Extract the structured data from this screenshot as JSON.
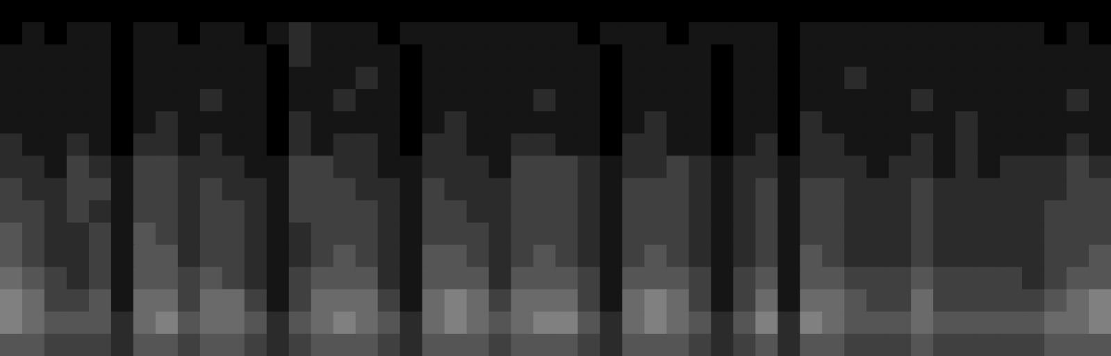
{
  "chart_data": {
    "type": "heatmap",
    "tick_labels": false,
    "xlim": [
      0,
      50
    ],
    "ylim": [
      0,
      16
    ],
    "color_range": [
      0,
      12
    ],
    "cells": [
      [
        0,
        0,
        0,
        0,
        0,
        0,
        0,
        0,
        0,
        0,
        0,
        0,
        0,
        0,
        0,
        0,
        0,
        0,
        0,
        0,
        0,
        0,
        0,
        0,
        0,
        0,
        0,
        0,
        0,
        0,
        0,
        0,
        0,
        0,
        0,
        0,
        0,
        0,
        0,
        0,
        0,
        0,
        0,
        0,
        0,
        0,
        0,
        0,
        0,
        0
      ],
      [
        0,
        1,
        0,
        1,
        1,
        0,
        1,
        1,
        0,
        1,
        1,
        0,
        1,
        2,
        1,
        1,
        1,
        0,
        1,
        1,
        1,
        1,
        1,
        1,
        1,
        1,
        0,
        1,
        1,
        1,
        0,
        1,
        1,
        1,
        1,
        0,
        1,
        1,
        1,
        1,
        1,
        1,
        1,
        1,
        1,
        1,
        1,
        0,
        1,
        0
      ],
      [
        1,
        1,
        1,
        1,
        1,
        0,
        1,
        1,
        1,
        1,
        1,
        1,
        0,
        2,
        1,
        1,
        1,
        1,
        0,
        1,
        1,
        1,
        1,
        1,
        1,
        1,
        1,
        0,
        1,
        1,
        1,
        1,
        0,
        1,
        1,
        0,
        1,
        1,
        1,
        1,
        1,
        1,
        1,
        1,
        1,
        1,
        1,
        1,
        1,
        1
      ],
      [
        1,
        1,
        1,
        1,
        1,
        0,
        1,
        1,
        1,
        1,
        1,
        1,
        0,
        1,
        1,
        1,
        2,
        1,
        0,
        1,
        1,
        1,
        1,
        1,
        1,
        1,
        1,
        0,
        1,
        1,
        1,
        1,
        0,
        1,
        1,
        0,
        1,
        1,
        2,
        1,
        1,
        1,
        1,
        1,
        1,
        1,
        1,
        1,
        1,
        1
      ],
      [
        1,
        1,
        1,
        1,
        1,
        0,
        1,
        1,
        1,
        2,
        1,
        1,
        0,
        1,
        1,
        2,
        1,
        1,
        0,
        1,
        1,
        1,
        1,
        1,
        2,
        1,
        1,
        0,
        1,
        1,
        1,
        1,
        0,
        1,
        1,
        0,
        1,
        1,
        1,
        1,
        1,
        2,
        1,
        1,
        1,
        1,
        1,
        1,
        2,
        1
      ],
      [
        1,
        1,
        1,
        1,
        1,
        0,
        1,
        2,
        1,
        1,
        1,
        1,
        0,
        2,
        1,
        1,
        1,
        1,
        0,
        1,
        2,
        1,
        1,
        1,
        1,
        1,
        1,
        0,
        1,
        2,
        1,
        1,
        0,
        1,
        1,
        0,
        2,
        1,
        1,
        1,
        1,
        1,
        1,
        2,
        1,
        1,
        1,
        1,
        1,
        1
      ],
      [
        2,
        1,
        1,
        2,
        1,
        0,
        2,
        2,
        1,
        2,
        1,
        1,
        0,
        2,
        1,
        2,
        2,
        1,
        0,
        2,
        2,
        1,
        1,
        2,
        2,
        1,
        1,
        0,
        2,
        2,
        1,
        1,
        0,
        1,
        2,
        0,
        2,
        2,
        1,
        1,
        1,
        2,
        1,
        2,
        1,
        1,
        1,
        1,
        2,
        1
      ],
      [
        2,
        2,
        1,
        3,
        2,
        1,
        3,
        3,
        2,
        2,
        2,
        1,
        1,
        3,
        3,
        2,
        2,
        1,
        1,
        2,
        2,
        2,
        1,
        3,
        3,
        3,
        2,
        1,
        2,
        2,
        3,
        2,
        1,
        2,
        2,
        1,
        2,
        2,
        2,
        1,
        2,
        2,
        1,
        2,
        1,
        2,
        2,
        2,
        3,
        2
      ],
      [
        3,
        2,
        2,
        3,
        3,
        1,
        3,
        3,
        2,
        3,
        2,
        2,
        1,
        3,
        3,
        3,
        2,
        2,
        1,
        3,
        2,
        2,
        2,
        3,
        3,
        3,
        2,
        1,
        3,
        3,
        3,
        2,
        1,
        2,
        3,
        1,
        3,
        3,
        2,
        2,
        2,
        3,
        2,
        2,
        2,
        2,
        2,
        2,
        3,
        3
      ],
      [
        3,
        3,
        2,
        3,
        2,
        1,
        3,
        3,
        2,
        3,
        3,
        2,
        1,
        3,
        3,
        3,
        3,
        2,
        1,
        3,
        3,
        2,
        2,
        3,
        3,
        3,
        2,
        1,
        3,
        3,
        3,
        2,
        1,
        2,
        3,
        1,
        3,
        3,
        2,
        2,
        2,
        3,
        2,
        2,
        2,
        2,
        2,
        3,
        3,
        3
      ],
      [
        4,
        3,
        2,
        2,
        3,
        1,
        4,
        3,
        2,
        3,
        3,
        2,
        1,
        2,
        3,
        3,
        3,
        2,
        1,
        3,
        3,
        3,
        2,
        3,
        3,
        3,
        2,
        1,
        3,
        3,
        3,
        2,
        1,
        2,
        3,
        1,
        3,
        3,
        2,
        2,
        2,
        3,
        2,
        2,
        2,
        2,
        2,
        3,
        3,
        3
      ],
      [
        4,
        3,
        2,
        2,
        3,
        1,
        4,
        4,
        2,
        3,
        3,
        2,
        1,
        2,
        3,
        4,
        3,
        2,
        1,
        4,
        4,
        3,
        2,
        3,
        4,
        3,
        2,
        1,
        3,
        4,
        3,
        2,
        1,
        2,
        3,
        1,
        4,
        3,
        2,
        2,
        2,
        3,
        2,
        2,
        2,
        2,
        2,
        3,
        3,
        4
      ],
      [
        5,
        4,
        3,
        2,
        3,
        1,
        4,
        4,
        3,
        4,
        3,
        2,
        1,
        3,
        4,
        4,
        4,
        2,
        1,
        4,
        4,
        4,
        2,
        4,
        4,
        4,
        3,
        1,
        4,
        4,
        4,
        3,
        1,
        3,
        4,
        1,
        4,
        4,
        3,
        3,
        3,
        4,
        3,
        3,
        3,
        3,
        2,
        3,
        4,
        4
      ],
      [
        6,
        5,
        3,
        3,
        4,
        1,
        5,
        5,
        3,
        5,
        5,
        3,
        1,
        3,
        5,
        5,
        5,
        3,
        1,
        5,
        6,
        5,
        3,
        5,
        5,
        5,
        3,
        1,
        5,
        6,
        5,
        3,
        1,
        3,
        5,
        1,
        5,
        5,
        4,
        3,
        3,
        5,
        3,
        3,
        3,
        3,
        3,
        4,
        5,
        6
      ],
      [
        6,
        5,
        4,
        4,
        4,
        2,
        5,
        6,
        4,
        5,
        5,
        4,
        2,
        4,
        5,
        6,
        5,
        4,
        2,
        5,
        6,
        5,
        4,
        5,
        6,
        6,
        4,
        2,
        5,
        6,
        5,
        4,
        2,
        4,
        6,
        2,
        6,
        5,
        4,
        4,
        4,
        5,
        4,
        4,
        4,
        4,
        4,
        5,
        5,
        6
      ],
      [
        4,
        4,
        3,
        3,
        3,
        2,
        4,
        4,
        3,
        4,
        4,
        3,
        2,
        3,
        4,
        4,
        4,
        3,
        2,
        4,
        4,
        4,
        3,
        4,
        4,
        4,
        3,
        2,
        4,
        4,
        4,
        3,
        2,
        3,
        4,
        2,
        4,
        4,
        3,
        3,
        3,
        4,
        3,
        3,
        3,
        3,
        3,
        4,
        4,
        4
      ]
    ]
  }
}
